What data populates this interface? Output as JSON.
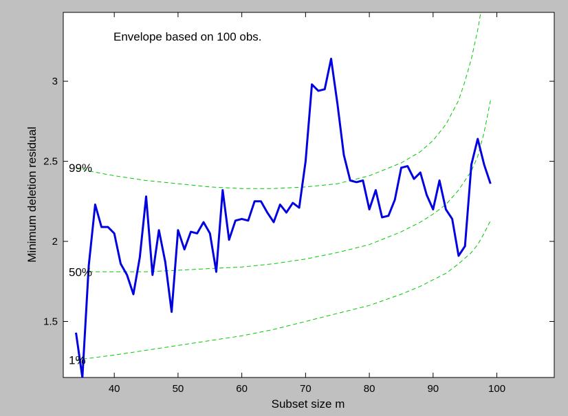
{
  "chart_data": {
    "type": "line",
    "annotation": "Envelope based on 100 obs.",
    "xlabel": "Subset size m",
    "ylabel": "Minimum deletion residual",
    "xlim": [
      32,
      109
    ],
    "ylim": [
      1.15,
      3.43
    ],
    "xticks": [
      40,
      50,
      60,
      70,
      80,
      90,
      100
    ],
    "yticks": [
      1.5,
      2,
      2.5,
      3
    ],
    "ytick_labels": [
      "1.5",
      "2",
      "2.5",
      "3"
    ],
    "grid": false,
    "colors": {
      "residual": "#0000e0",
      "envelope": "#00c800",
      "background": "#c0c0c0",
      "axes_bg": "#ffffff"
    },
    "series": [
      {
        "style": "solid",
        "x": [
          34,
          35,
          36,
          37,
          38,
          39,
          40,
          41,
          42,
          43,
          44,
          45,
          46,
          47,
          48,
          49,
          50,
          51,
          52,
          53,
          54,
          55,
          56,
          57,
          58,
          59,
          60,
          61,
          62,
          63,
          64,
          65,
          66,
          67,
          68,
          69,
          70,
          71,
          72,
          73,
          74,
          75,
          76,
          77,
          78,
          79,
          80,
          81,
          82,
          83,
          84,
          85,
          86,
          87,
          88,
          89,
          90,
          91,
          92,
          93,
          94,
          95,
          96,
          97,
          98,
          99
        ],
        "y": [
          1.43,
          1.15,
          1.85,
          2.23,
          2.09,
          2.09,
          2.05,
          1.86,
          1.79,
          1.67,
          1.9,
          2.28,
          1.79,
          2.07,
          1.87,
          1.56,
          2.07,
          1.95,
          2.06,
          2.05,
          2.12,
          2.05,
          1.81,
          2.32,
          2.01,
          2.13,
          2.14,
          2.13,
          2.25,
          2.25,
          2.18,
          2.12,
          2.23,
          2.18,
          2.24,
          2.21,
          2.5,
          2.98,
          2.94,
          2.95,
          3.14,
          2.86,
          2.54,
          2.38,
          2.37,
          2.38,
          2.2,
          2.32,
          2.15,
          2.16,
          2.26,
          2.46,
          2.47,
          2.39,
          2.43,
          2.29,
          2.2,
          2.38,
          2.2,
          2.14,
          1.91,
          1.97,
          2.48,
          2.64,
          2.48,
          2.36
        ]
      },
      {
        "name": "99%",
        "style": "dashed",
        "x": [
          34,
          36,
          40,
          45,
          50,
          55,
          60,
          65,
          70,
          75,
          80,
          85,
          88,
          90,
          92,
          94,
          95,
          96,
          97,
          98
        ],
        "y": [
          2.46,
          2.44,
          2.41,
          2.38,
          2.36,
          2.34,
          2.33,
          2.33,
          2.34,
          2.36,
          2.41,
          2.49,
          2.56,
          2.63,
          2.73,
          2.88,
          3.0,
          3.14,
          3.32,
          3.55
        ]
      },
      {
        "name": "50%",
        "style": "dashed",
        "x": [
          36,
          40,
          45,
          50,
          55,
          60,
          65,
          70,
          75,
          80,
          85,
          88,
          90,
          92,
          94,
          96,
          97,
          98,
          99
        ],
        "y": [
          1.81,
          1.81,
          1.81,
          1.82,
          1.83,
          1.84,
          1.86,
          1.89,
          1.93,
          1.98,
          2.06,
          2.12,
          2.17,
          2.23,
          2.32,
          2.44,
          2.53,
          2.68,
          2.88
        ]
      },
      {
        "name": "1%",
        "style": "dashed",
        "x": [
          34,
          36,
          40,
          45,
          50,
          55,
          60,
          65,
          70,
          75,
          80,
          85,
          88,
          90,
          92,
          94,
          96,
          97,
          98,
          99
        ],
        "y": [
          1.26,
          1.27,
          1.29,
          1.32,
          1.35,
          1.38,
          1.41,
          1.45,
          1.5,
          1.55,
          1.6,
          1.67,
          1.72,
          1.76,
          1.8,
          1.86,
          1.93,
          1.98,
          2.05,
          2.13
        ]
      }
    ]
  }
}
